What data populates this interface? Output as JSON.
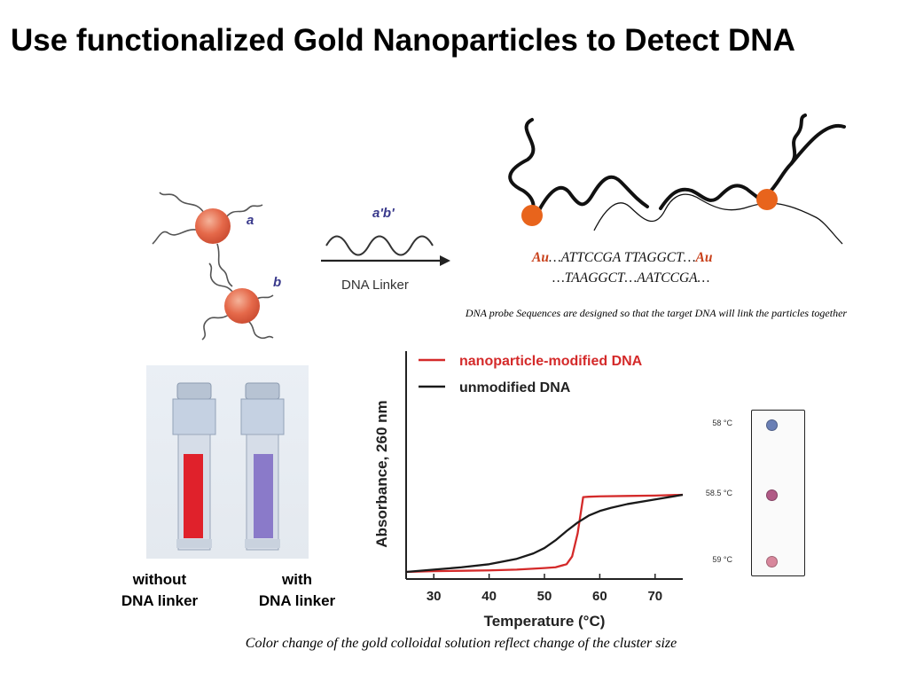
{
  "slide": {
    "title": "Use functionalized Gold Nanoparticles to Detect DNA"
  },
  "scheme": {
    "label_a": "a",
    "label_b": "b",
    "linker_label": "a'b'",
    "linker_name": "DNA Linker"
  },
  "probe_diagram": {
    "seq_line1_au_left": "Au",
    "seq_line1_middle": "…ATTCCGA     TTAGGCT…",
    "seq_line1_au_right": "Au",
    "seq_line2": "…TAAGGCT…AATCCGA…",
    "caption": "DNA probe Sequences are designed so that the target DNA will link the particles together"
  },
  "vials": {
    "left_label_line1": "without",
    "left_label_line2": "DNA linker",
    "right_label_line1": "with",
    "right_label_line2": "DNA linker",
    "left_solution_color": "#e0212b",
    "right_solution_color": "#8a7ac9"
  },
  "melting_panel": {
    "temperatures": [
      "58 °C",
      "58.5 °C",
      "59 °C"
    ],
    "dot_colors": [
      "#6a7fb5",
      "#b15a86",
      "#d8879c"
    ]
  },
  "bottom_caption": "Color change of  the gold colloidal solution reflect change of  the cluster size",
  "chart_data": {
    "type": "line",
    "title": "",
    "xlabel": "Temperature (°C)",
    "ylabel": "Absorbance, 260 nm",
    "xlim": [
      25,
      75
    ],
    "ylim": [
      0,
      1
    ],
    "xticks": [
      30,
      40,
      50,
      60,
      70
    ],
    "legend_position": "top-left",
    "series": [
      {
        "name": "nanoparticle-modified DNA",
        "color": "#d42a2a",
        "x": [
          25,
          30,
          35,
          40,
          45,
          50,
          52,
          54,
          55,
          56,
          57,
          58,
          60,
          65,
          70,
          75
        ],
        "y": [
          0.0,
          0.01,
          0.015,
          0.02,
          0.03,
          0.05,
          0.06,
          0.1,
          0.2,
          0.5,
          0.97,
          0.975,
          0.98,
          0.985,
          0.99,
          1.0
        ]
      },
      {
        "name": "unmodified DNA",
        "color": "#1a1a1a",
        "x": [
          25,
          30,
          35,
          40,
          45,
          48,
          50,
          52,
          54,
          56,
          58,
          60,
          62,
          65,
          70,
          75
        ],
        "y": [
          0.0,
          0.03,
          0.06,
          0.1,
          0.17,
          0.24,
          0.31,
          0.41,
          0.53,
          0.64,
          0.73,
          0.79,
          0.83,
          0.88,
          0.94,
          1.0
        ]
      }
    ]
  }
}
